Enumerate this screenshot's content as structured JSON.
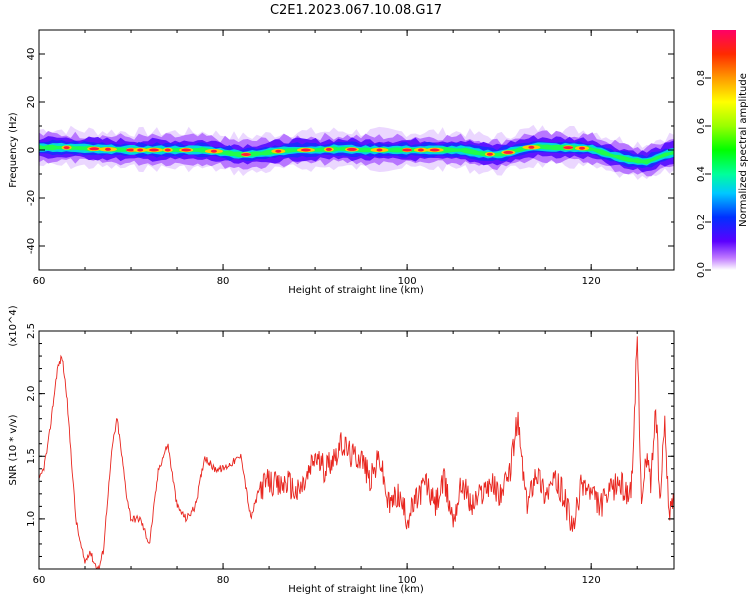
{
  "title": "C2E1.2023.067.10.08.G17",
  "chart_data": [
    {
      "type": "heatmap",
      "xlabel": "Height of straight line (km)",
      "ylabel": "Frequency (Hz)",
      "xlim": [
        60,
        129
      ],
      "ylim": [
        -50,
        50
      ],
      "xticks": [
        "60",
        "80",
        "100",
        "120"
      ],
      "yticks": [
        "40",
        "20",
        "0",
        "-20",
        "-40"
      ],
      "colorbar": {
        "label": "Normalized spectral amplitude",
        "range": [
          0,
          1
        ],
        "ticks": [
          "0.0",
          "0.2",
          "0.4",
          "0.6",
          "0.8"
        ]
      },
      "ridge": {
        "x": [
          60.5,
          63,
          66,
          70,
          75,
          78,
          80,
          82,
          84,
          86,
          88,
          90,
          93,
          95,
          98,
          100,
          103,
          106,
          108,
          110,
          112,
          114,
          116,
          118,
          120,
          122,
          124,
          126,
          128,
          129
        ],
        "y": [
          1,
          1,
          0.5,
          0,
          0,
          0,
          -1,
          -2,
          -1.5,
          -0.5,
          0,
          0,
          0.5,
          0,
          0,
          0,
          0,
          0,
          -1.5,
          -2,
          0,
          1.5,
          1,
          1,
          0.5,
          -2,
          -4,
          -5,
          -2,
          -1
        ]
      }
    },
    {
      "type": "line",
      "xlabel": "Height of straight line (km)",
      "ylabel": "SNR (10 * v/v)",
      "y_multiplier": "(x10^4)",
      "xlim": [
        60,
        129
      ],
      "ylim": [
        0.6,
        2.5
      ],
      "xticks": [
        "60",
        "80",
        "100",
        "120"
      ],
      "yticks": [
        "1.0",
        "1.5",
        "2.0",
        "2.5"
      ],
      "color": "#e8251e",
      "series": [
        {
          "x": [
            60,
            60.5,
            61,
            61.5,
            62,
            62.5,
            63,
            63.5,
            64,
            64.5,
            65,
            65.5,
            66,
            66.5,
            67,
            67.5,
            68,
            68.5,
            69,
            69.5,
            70,
            71,
            72,
            73,
            74,
            75,
            76,
            77,
            78,
            79,
            80,
            81,
            82,
            83,
            84,
            85,
            86,
            87,
            88,
            89,
            90,
            91,
            92,
            93,
            94,
            95,
            96,
            97,
            98,
            99,
            100,
            101,
            102,
            103,
            104,
            105,
            106,
            107,
            108,
            109,
            110,
            111,
            112,
            113,
            114,
            115,
            116,
            117,
            118,
            119,
            120,
            121,
            122,
            123,
            124,
            124.5,
            125,
            125.5,
            126,
            126.5,
            127,
            127.5,
            128,
            128.5,
            129
          ],
          "y": [
            1.3,
            1.4,
            1.6,
            1.9,
            2.2,
            2.3,
            2.0,
            1.5,
            1.0,
            0.8,
            0.65,
            0.75,
            0.65,
            0.6,
            0.75,
            1.2,
            1.6,
            1.8,
            1.5,
            1.2,
            1.0,
            1.0,
            0.8,
            1.4,
            1.6,
            1.1,
            1.0,
            1.1,
            1.5,
            1.4,
            1.4,
            1.45,
            1.5,
            1.0,
            1.25,
            1.3,
            1.25,
            1.3,
            1.2,
            1.3,
            1.5,
            1.4,
            1.5,
            1.6,
            1.5,
            1.5,
            1.3,
            1.5,
            1.1,
            1.2,
            1.0,
            1.15,
            1.3,
            1.1,
            1.3,
            1.0,
            1.3,
            1.1,
            1.2,
            1.3,
            1.2,
            1.3,
            1.8,
            1.1,
            1.4,
            1.2,
            1.3,
            1.2,
            0.9,
            1.3,
            1.2,
            1.1,
            1.2,
            1.3,
            1.2,
            1.3,
            2.5,
            1.1,
            1.5,
            1.3,
            1.9,
            1.1,
            1.8,
            1.0,
            1.2
          ]
        }
      ]
    }
  ]
}
